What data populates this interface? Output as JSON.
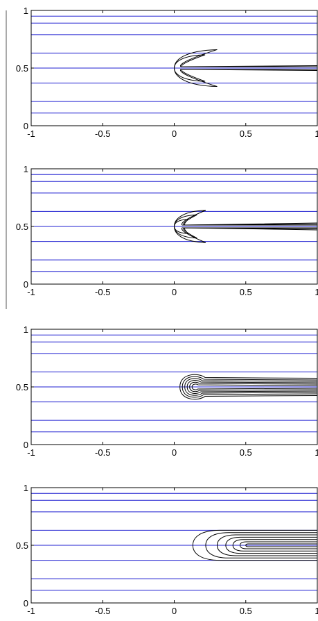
{
  "chart_data": [
    {
      "type": "contour",
      "panel": 1,
      "xlim": [
        -1,
        1
      ],
      "ylim": [
        0,
        1
      ],
      "xticks": [
        "-1",
        "-0.5",
        "0",
        "0.5",
        "1"
      ],
      "yticks": [
        "0",
        "0.5",
        "1"
      ],
      "streamlines_y": [
        0.11,
        0.21,
        0.37,
        0.5,
        0.63,
        0.79,
        0.89,
        0.95
      ],
      "contour_shape": "crescent",
      "nose_x": 0.0,
      "front_x": 0.03,
      "tail_x": 1.0,
      "lobe_tip_x": 0.3,
      "lobe_half_height": 0.16,
      "contour_levels": 2
    },
    {
      "type": "contour",
      "panel": 2,
      "xlim": [
        -1,
        1
      ],
      "ylim": [
        0,
        1
      ],
      "xticks": [
        "-1",
        "-0.5",
        "0",
        "0.5",
        "1"
      ],
      "yticks": [
        "0",
        "0.5",
        "1"
      ],
      "streamlines_y": [
        0.11,
        0.21,
        0.37,
        0.5,
        0.63,
        0.79,
        0.89,
        0.95
      ],
      "contour_shape": "arrowhead",
      "nose_x": 0.0,
      "front_x": 0.04,
      "tail_x": 1.0,
      "lobe_tip_x": 0.22,
      "lobe_half_height": 0.14,
      "contour_levels": 3
    },
    {
      "type": "contour",
      "panel": 3,
      "xlim": [
        -1,
        1
      ],
      "ylim": [
        0,
        1
      ],
      "xticks": [
        "-1",
        "-0.5",
        "0",
        "0.5",
        "1"
      ],
      "yticks": [
        "0",
        "0.5",
        "1"
      ],
      "streamlines_y": [
        0.11,
        0.21,
        0.37,
        0.5,
        0.63,
        0.79,
        0.89,
        0.95
      ],
      "contour_shape": "bulb",
      "head_x": 0.15,
      "head_radii": [
        0.13,
        0.11,
        0.09,
        0.07,
        0.05,
        0.03
      ],
      "tail_half_heights": [
        0.075,
        0.06,
        0.048,
        0.036,
        0.024,
        0.012
      ],
      "tail_x": 1.0
    },
    {
      "type": "contour",
      "panel": 4,
      "xlim": [
        -1,
        1
      ],
      "ylim": [
        0,
        1
      ],
      "xticks": [
        "-1",
        "-0.5",
        "0",
        "0.5",
        "1"
      ],
      "yticks": [
        "0",
        "0.5",
        "1"
      ],
      "streamlines_y": [
        0.11,
        0.21,
        0.37,
        0.5,
        0.63,
        0.79,
        0.89,
        0.95
      ],
      "contour_shape": "plume",
      "start_x": [
        0.13,
        0.22,
        0.3,
        0.36,
        0.41,
        0.46,
        0.5
      ],
      "half_heights": [
        0.13,
        0.11,
        0.09,
        0.07,
        0.05,
        0.03,
        0.012
      ],
      "tail_x": 1.0
    }
  ]
}
